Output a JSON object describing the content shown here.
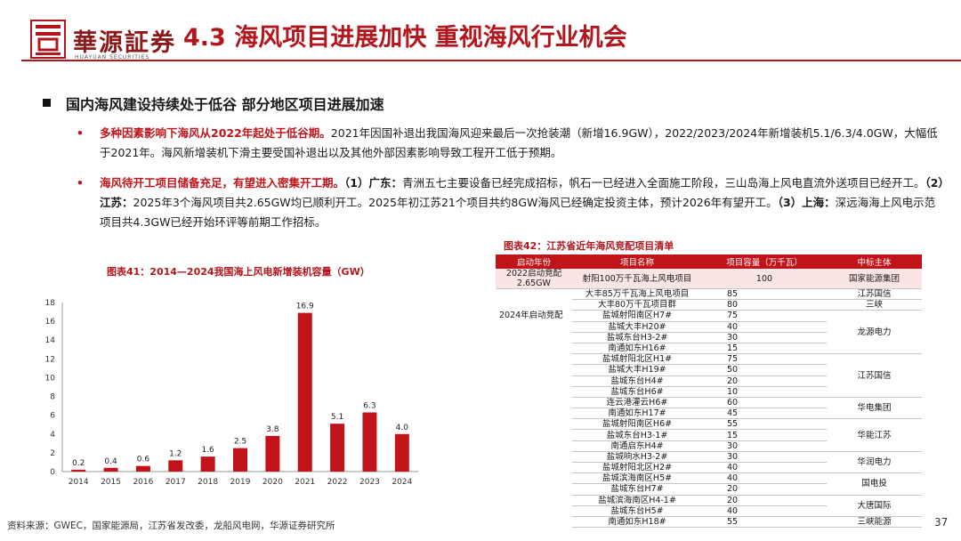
{
  "header": {
    "logo_cn": "華源証券",
    "logo_en": "HUAYUAN SECURITIES",
    "title": "4.3 海风项目进展加快 重视海风行业机会"
  },
  "section": {
    "heading": "国内海风建设持续处于低谷 部分地区项目进展加速",
    "bullet1": {
      "marker": "•",
      "highlight": "多种因素影响下海风从2022年起处于低谷期。",
      "text": "2021年因国补退出我国海风迎来最后一次抢装潮（新增16.9GW），2022/2023/2024年新增装机5.1/6.3/4.0GW，大幅低于2021年。海风新增装机下滑主要受国补退出以及其他外部因素影响导致工程开工低于预期。"
    },
    "bullet2": {
      "marker": "•",
      "highlight": "海风待开工项目储备充足，有望进入密集开工期。",
      "p1_label": "（1）广东：",
      "p1_text": "青洲五七主要设备已经完成招标，帆石一已经进入全面施工阶段，三山岛海上风电直流外送项目已经开工。",
      "p2_label": "（2）江苏：",
      "p2_text": "2025年3个海风项目共2.65GW均已顺利开工。2025年初江苏21个项目共约8GW海风已经确定投资主体，预计2026年有望开工。",
      "p3_label": "（3）上海：",
      "p3_text": "深远海海上风电示范项目共4.3GW已经开始环评等前期工作招标。"
    }
  },
  "chart_caption": "图表41：2014—2024我国海上风电新增装机容量（GW）",
  "chart_data": {
    "type": "bar",
    "title": "图表41：2014—2024我国海上风电新增装机容量（GW）",
    "categories": [
      "2014",
      "2015",
      "2016",
      "2017",
      "2018",
      "2019",
      "2020",
      "2021",
      "2022",
      "2023",
      "2024"
    ],
    "values": [
      0.2,
      0.4,
      0.6,
      1.2,
      1.6,
      2.5,
      3.8,
      16.9,
      5.1,
      6.3,
      4.0
    ],
    "value_labels": [
      "0.2",
      "0.4",
      "0.6",
      "1.2",
      "1.6",
      "2.5",
      "3.8",
      "16.9",
      "5.1",
      "6.3",
      "4.0"
    ],
    "ylim": [
      0,
      18
    ],
    "yticks": [
      "0",
      "2",
      "4",
      "6",
      "8",
      "10",
      "12",
      "14",
      "16",
      "18"
    ],
    "color": "#c0141a",
    "grid": false
  },
  "table": {
    "caption": "图表42：江苏省近年海风竞配项目清单",
    "headers": [
      "启动年份",
      "项目名称",
      "项目容量（万千瓦）",
      "中标主体"
    ],
    "year_2022": "2022启动竞配 2.65GW",
    "year_2024": "2024年启动竞配",
    "rows": [
      {
        "name": "射阳100万千瓦海上风电项目",
        "cap": "100",
        "owner": "国家能源集团"
      },
      {
        "name": "大丰85万千瓦海上风电项目",
        "cap": "85",
        "owner": "江苏国信"
      },
      {
        "name": "大丰80万千瓦项目群",
        "cap": "80",
        "owner": "三峡"
      },
      {
        "name": "盐城射阳南区H7#",
        "cap": "75"
      },
      {
        "name": "盐城大丰H20#",
        "cap": "40"
      },
      {
        "name": "盐城东台H3-2#",
        "cap": "30"
      },
      {
        "name": "南通如东H16#",
        "cap": "15"
      },
      {
        "name": "盐城射阳北区H1#",
        "cap": "75"
      },
      {
        "name": "盐城大丰H19#",
        "cap": "50"
      },
      {
        "name": "盐城东台H4#",
        "cap": "20"
      },
      {
        "name": "盐城东台H6#",
        "cap": "10"
      },
      {
        "name": "连云港灌云H6#",
        "cap": "60"
      },
      {
        "name": "南通如东H17#",
        "cap": "45"
      },
      {
        "name": "盐城射阳南区H6#",
        "cap": "55"
      },
      {
        "name": "盐城东台H3-1#",
        "cap": "15"
      },
      {
        "name": "南通启东H4#",
        "cap": "30"
      },
      {
        "name": "盐城响水H3-2#",
        "cap": "30"
      },
      {
        "name": "盐城射阳北区H2#",
        "cap": "40"
      },
      {
        "name": "盐城滨海南区H5#",
        "cap": "40"
      },
      {
        "name": "盐城东台H7#",
        "cap": "20"
      },
      {
        "name": "盐城滨海南区H4-1#",
        "cap": "20"
      },
      {
        "name": "盐城东台H5#",
        "cap": "40"
      },
      {
        "name": "南通如东H18#",
        "cap": "55"
      }
    ],
    "groups": {
      "longyuan": "龙源电力",
      "jiangsu_guoxin": "江苏国信",
      "huadian": "华电集团",
      "huaneng": "华能江苏",
      "huarun": "华润电力",
      "guodiantou": "国电投",
      "datang": "大唐国际",
      "sanxia_new": "三峡能源"
    }
  },
  "footer": {
    "source": "资料来源：GWEC，国家能源局，江苏省发改委，龙船风电网，华源证券研究所",
    "page": "37"
  }
}
